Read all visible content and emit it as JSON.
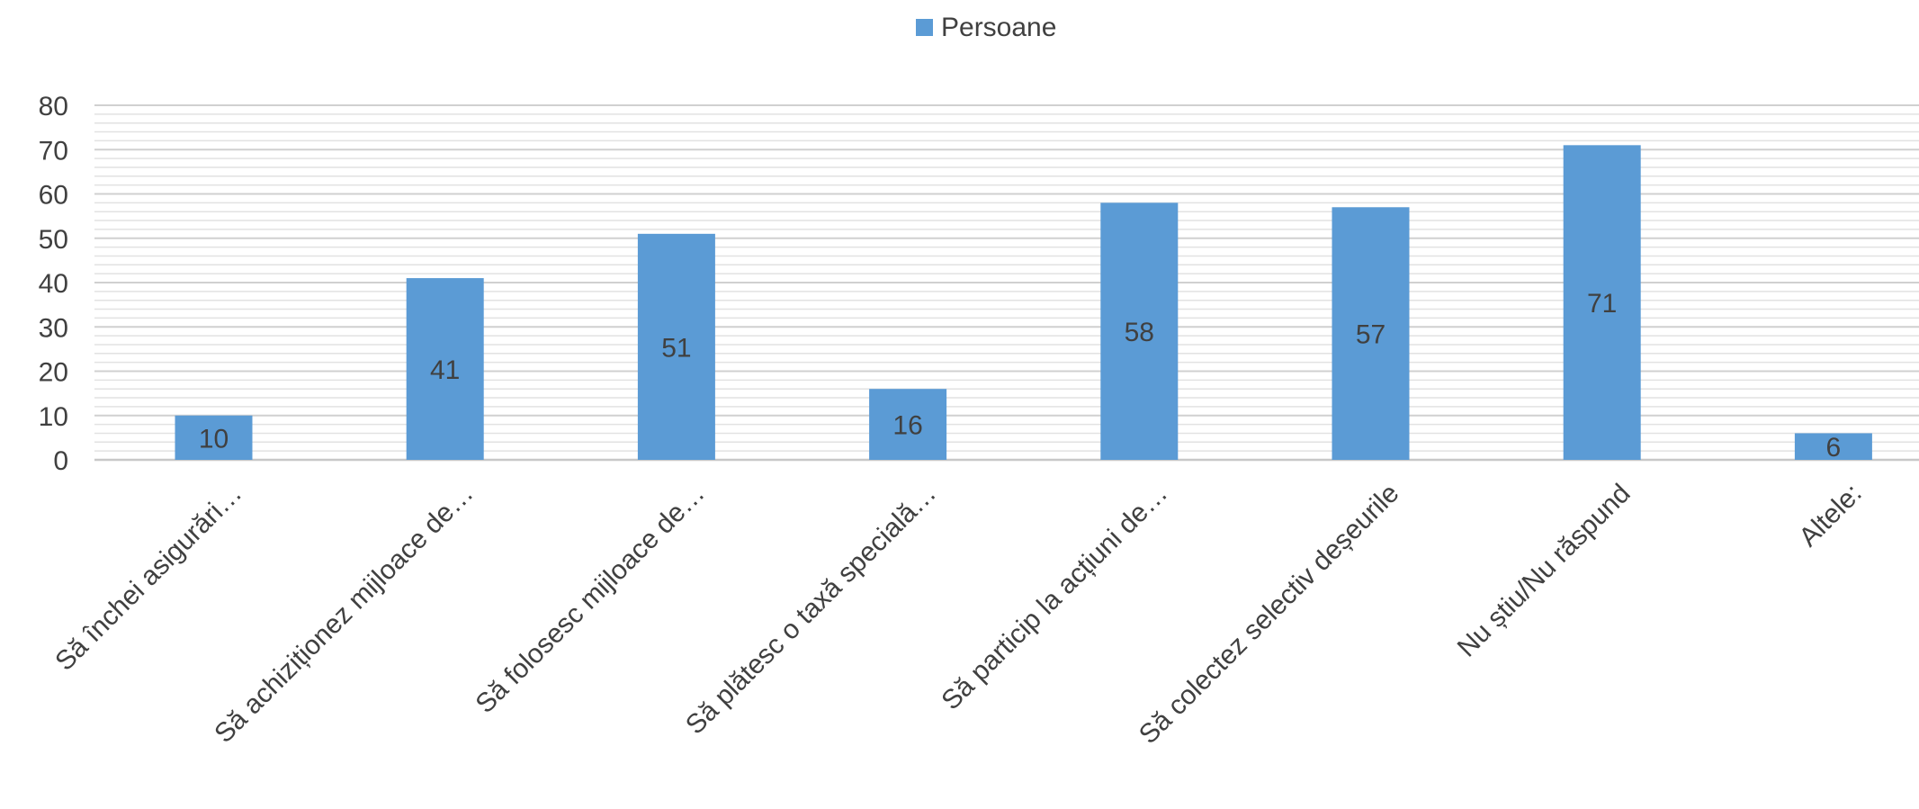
{
  "chart_data": {
    "type": "bar",
    "title": "",
    "xlabel": "",
    "ylabel": "",
    "legend_position": "top-center",
    "grid": true,
    "ylim": [
      0,
      80
    ],
    "yticks": [
      0,
      10,
      20,
      30,
      40,
      50,
      60,
      70,
      80
    ],
    "categories": [
      "Să închei asigurări…",
      "Să achiziționez mijloace de…",
      "Să folosesc mijloace de…",
      "Să plătesc o taxă specială…",
      "Să particip la acțiuni de…",
      "Să colectez selectiv deșeurile",
      "Nu știu/Nu răspund",
      "Altele:"
    ],
    "series": [
      {
        "name": "Persoane",
        "color": "#5b9bd5",
        "values": [
          10,
          41,
          51,
          16,
          58,
          57,
          71,
          6
        ]
      }
    ]
  }
}
